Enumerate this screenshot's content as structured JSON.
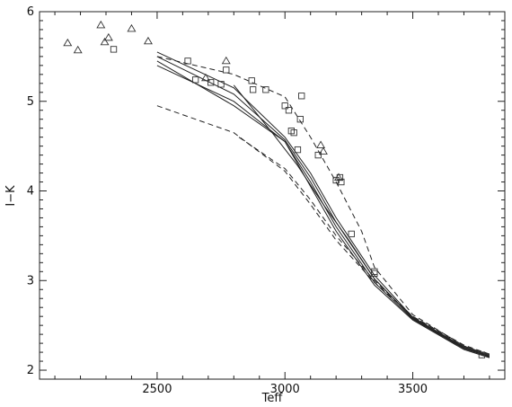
{
  "chart_data": {
    "type": "scatter",
    "xlabel": "Teff",
    "ylabel": "I−K",
    "xlim": [
      2040,
      3860
    ],
    "ylim": [
      1.9,
      6.0
    ],
    "x_ticks": [
      2500,
      3000,
      3500
    ],
    "y_ticks": [
      2,
      3,
      4,
      5,
      6
    ],
    "grid": false,
    "series": [
      {
        "marker": "triangle",
        "points": [
          [
            2150,
            5.65
          ],
          [
            2190,
            5.57
          ],
          [
            2280,
            5.85
          ],
          [
            2295,
            5.66
          ],
          [
            2310,
            5.71
          ],
          [
            2400,
            5.81
          ],
          [
            2465,
            5.67
          ],
          [
            2690,
            5.26
          ],
          [
            2770,
            5.45
          ],
          [
            3140,
            4.51
          ],
          [
            3150,
            4.44
          ],
          [
            3210,
            4.15
          ]
        ]
      },
      {
        "marker": "square",
        "points": [
          [
            2330,
            5.58
          ],
          [
            2620,
            5.45
          ],
          [
            2650,
            5.24
          ],
          [
            2710,
            5.21
          ],
          [
            2750,
            5.19
          ],
          [
            2770,
            5.35
          ],
          [
            2870,
            5.23
          ],
          [
            2875,
            5.13
          ],
          [
            2925,
            5.13
          ],
          [
            3000,
            4.95
          ],
          [
            3015,
            4.9
          ],
          [
            3025,
            4.67
          ],
          [
            3035,
            4.65
          ],
          [
            3050,
            4.46
          ],
          [
            3060,
            4.8
          ],
          [
            3065,
            5.06
          ],
          [
            3130,
            4.4
          ],
          [
            3200,
            4.12
          ],
          [
            3215,
            4.15
          ],
          [
            3220,
            4.1
          ],
          [
            3260,
            3.52
          ],
          [
            3350,
            3.1
          ],
          [
            3350,
            3.08
          ],
          [
            3770,
            2.17
          ]
        ]
      },
      {
        "style": "solid",
        "x": [
          2500,
          2800,
          3000,
          3100,
          3200,
          3350,
          3500,
          3700,
          3800
        ],
        "y": [
          5.45,
          4.95,
          4.55,
          4.05,
          3.55,
          2.95,
          2.56,
          2.23,
          2.14
        ]
      },
      {
        "style": "solid",
        "x": [
          2500,
          2800,
          3000,
          3100,
          3200,
          3350,
          3500,
          3700,
          3800
        ],
        "y": [
          5.4,
          5.0,
          4.55,
          4.1,
          3.6,
          2.98,
          2.57,
          2.24,
          2.15
        ]
      },
      {
        "style": "solid",
        "x": [
          2500,
          2800,
          3000,
          3100,
          3200,
          3350,
          3500,
          3700,
          3800
        ],
        "y": [
          5.5,
          5.08,
          4.57,
          4.15,
          3.65,
          3.02,
          2.58,
          2.25,
          2.15
        ]
      },
      {
        "style": "solid",
        "x": [
          2500,
          2800,
          3000,
          3100,
          3200,
          3350,
          3500,
          3700,
          3800
        ],
        "y": [
          5.55,
          5.15,
          4.6,
          4.2,
          3.7,
          3.06,
          2.59,
          2.26,
          2.16
        ]
      },
      {
        "style": "solid",
        "x": [
          2800,
          2950,
          3050,
          3150,
          3250,
          3350,
          3500,
          3700,
          3800
        ],
        "y": [
          5.18,
          4.65,
          4.28,
          3.85,
          3.45,
          3.02,
          2.58,
          2.25,
          2.15
        ]
      },
      {
        "style": "dashed",
        "x": [
          2500,
          2800,
          3000,
          3100,
          3200,
          3300,
          3350,
          3500,
          3700,
          3800
        ],
        "y": [
          5.5,
          5.3,
          5.05,
          4.6,
          4.1,
          3.55,
          3.15,
          2.62,
          2.27,
          2.17
        ]
      },
      {
        "style": "dashed",
        "x": [
          2500,
          2800,
          3000,
          3100,
          3200,
          3350,
          3500,
          3700,
          3800
        ],
        "y": [
          4.95,
          4.65,
          4.22,
          3.85,
          3.45,
          2.98,
          2.6,
          2.27,
          2.17
        ]
      },
      {
        "style": "dashed",
        "x": [
          2820,
          3000,
          3100,
          3200,
          3350,
          3500,
          3700,
          3800
        ],
        "y": [
          4.6,
          4.25,
          3.9,
          3.5,
          3.0,
          2.6,
          2.28,
          2.18
        ]
      }
    ]
  }
}
